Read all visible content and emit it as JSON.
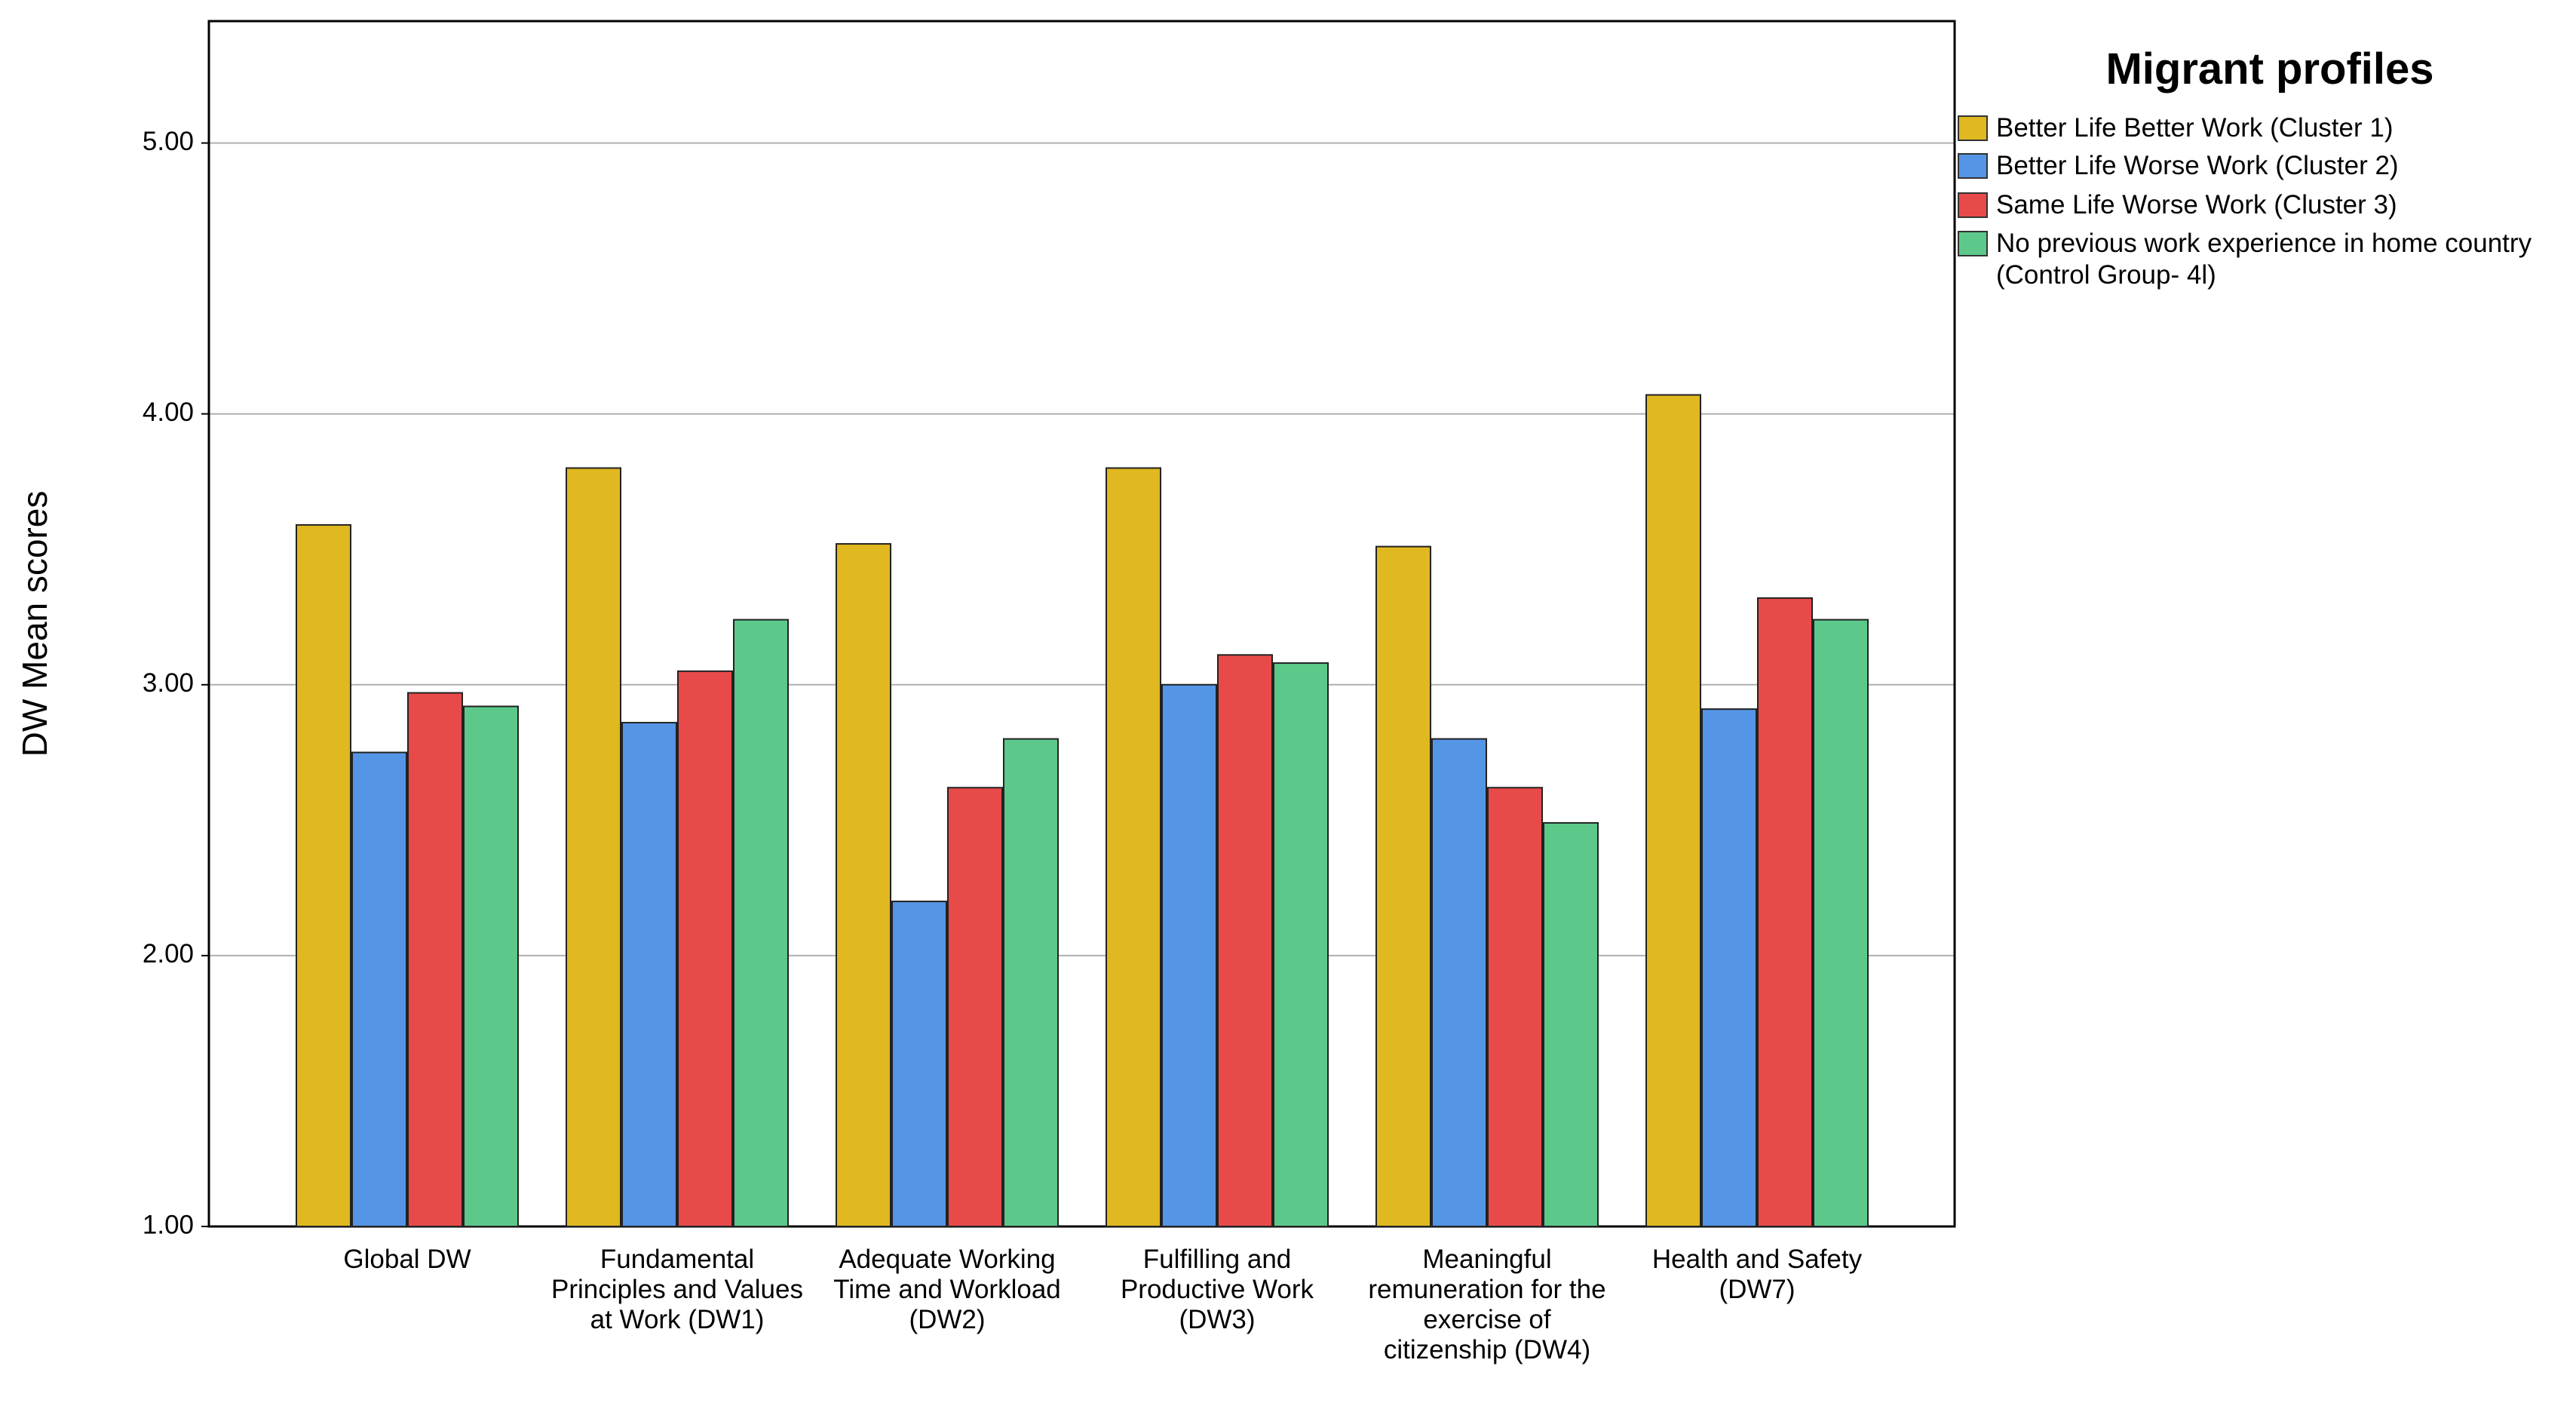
{
  "chart_data": {
    "type": "bar",
    "y_label": "DW Mean scores",
    "legend_title": "Migrant profiles",
    "categories": [
      "Global DW",
      "Fundamental Principles and Values at Work (DW1)",
      "Adequate Working Time and Workload (DW2)",
      "Fulfilling and Productive Work (DW3)",
      "Meaningful remuneration for the exercise of citizenship (DW4)",
      "Health and Safety (DW7)"
    ],
    "series": [
      {
        "name": "Better Life Better Work (Cluster 1)",
        "color": "#e0b820",
        "values": [
          3.59,
          3.8,
          3.52,
          3.8,
          3.51,
          4.07
        ]
      },
      {
        "name": "Better Life Worse Work (Cluster 2)",
        "color": "#5595e5",
        "values": [
          2.75,
          2.86,
          2.2,
          3.0,
          2.8,
          2.91
        ]
      },
      {
        "name": "Same Life Worse Work (Cluster 3)",
        "color": "#e84a4a",
        "values": [
          2.97,
          3.05,
          2.62,
          3.11,
          2.62,
          3.32
        ]
      },
      {
        "name": "No previous work experience in home country  (Control Group- 4l)",
        "color": "#5cc98a",
        "values": [
          2.92,
          3.24,
          2.8,
          3.08,
          2.49,
          3.24
        ]
      }
    ],
    "ylim": [
      1,
      5.45
    ],
    "yticks": [
      {
        "value": 1,
        "label": "1.00"
      },
      {
        "value": 2,
        "label": "2.00"
      },
      {
        "value": 3,
        "label": "3.00"
      },
      {
        "value": 4,
        "label": "4.00"
      },
      {
        "value": 5,
        "label": "5.00"
      }
    ],
    "grid": true
  }
}
